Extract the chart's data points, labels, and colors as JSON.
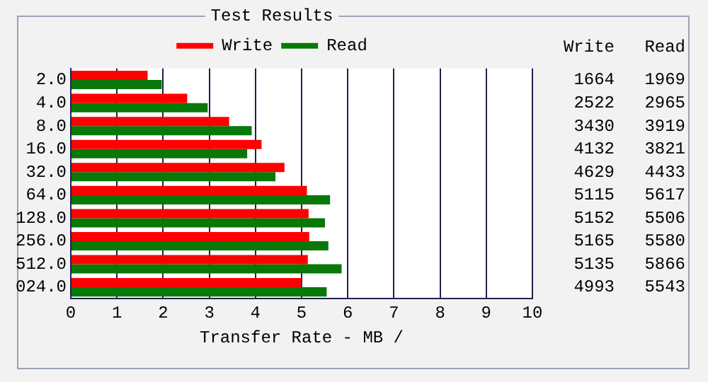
{
  "chart_data": {
    "type": "bar",
    "orientation": "horizontal",
    "title": "Test Results",
    "xlabel": "Transfer Rate - MB /",
    "categories": [
      "2.0",
      "4.0",
      "8.0",
      "16.0",
      "32.0",
      "64.0",
      "128.0",
      "256.0",
      "512.0",
      "024.0"
    ],
    "series": [
      {
        "name": "Write",
        "color": "#ff0000",
        "values": [
          1.664,
          2.522,
          3.43,
          4.132,
          4.629,
          5.115,
          5.152,
          5.165,
          5.135,
          4.993
        ]
      },
      {
        "name": "Read",
        "color": "#087808",
        "values": [
          1.969,
          2.965,
          3.919,
          3.821,
          4.433,
          5.617,
          5.506,
          5.58,
          5.866,
          5.543
        ]
      }
    ],
    "annotations": [
      "1664",
      "1969",
      "2522",
      "2965",
      "3430",
      "3919",
      "4132",
      "3821",
      "4629",
      "4433",
      "5115",
      "5617",
      "5152",
      "5506",
      "5165",
      "5580",
      "5135",
      "5866",
      "4993",
      "5543"
    ],
    "xlim": [
      0,
      10
    ],
    "xticks": [
      0,
      1,
      2,
      3,
      4,
      5,
      6,
      7,
      8,
      9,
      10
    ],
    "grid": "x",
    "legend": "top"
  }
}
